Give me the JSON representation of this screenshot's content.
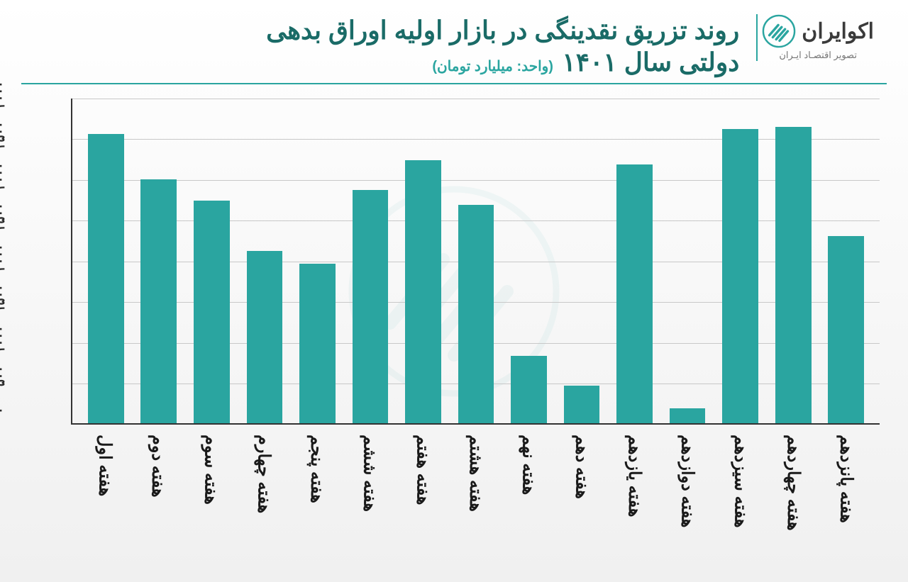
{
  "brand": {
    "name": "اکوایران",
    "tagline": "تصویر اقتصـاد ایـران",
    "accent_color": "#2aa5a0",
    "text_color": "#3a3a3a"
  },
  "title": {
    "line1": "روند تزریق نقدینگی در بازار اولیه اوراق بدهی",
    "line2": "دولتی سال ۱۴۰۱",
    "unit": "(واحد: میلیارد تومان)",
    "color": "#1a6b67",
    "fontsize": 36
  },
  "chart": {
    "type": "bar",
    "bar_color": "#2aa5a0",
    "background": "#ffffff",
    "grid_color": "#c8c8c8",
    "axis_color": "#333333",
    "bar_width": 0.68,
    "ylim": [
      0,
      4000
    ],
    "ytick_step": 500,
    "yticks": [
      "۰",
      "۵۰۰",
      "۱۰۰۰",
      "۱۵۰۰",
      "۲۰۰۰",
      "۲۵۰۰",
      "۳۰۰۰",
      "۳۵۰۰",
      "۴۰۰۰"
    ],
    "label_fontsize": 24,
    "tick_fontsize": 18,
    "categories": [
      "هفته اول",
      "هفته دوم",
      "هفته سوم",
      "هفته چهارم",
      "هفته پنجم",
      "هفته ششم",
      "هفته هفتم",
      "هفته هشتم",
      "هفته نهم",
      "هفته دهم",
      "هفته یازدهم",
      "هفته دوازدهم",
      "هفته سیزدهم",
      "هفته چهاردهم",
      "هفته پانزدهم"
    ],
    "values": [
      3560,
      3000,
      2740,
      2120,
      1960,
      2870,
      3240,
      2690,
      830,
      460,
      3190,
      180,
      3620,
      3650,
      2300
    ]
  }
}
